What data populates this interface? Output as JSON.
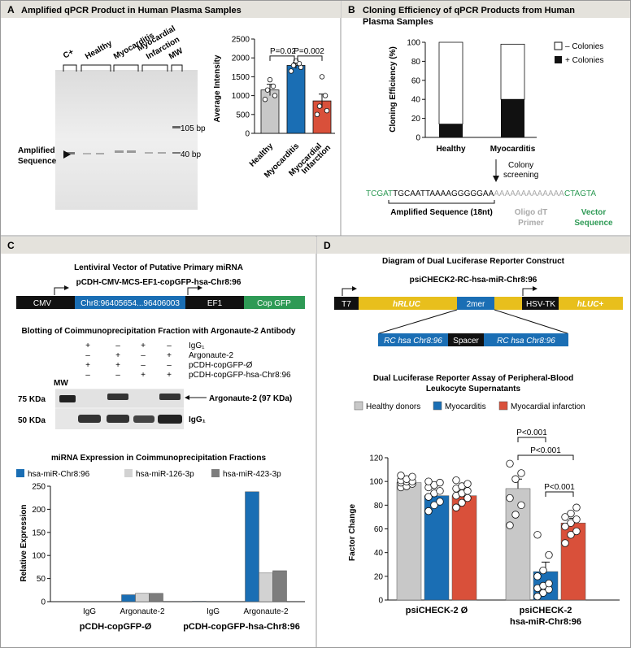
{
  "colors": {
    "panel_header": "#e4e2dc",
    "healthy": "#c8c8c8",
    "myocarditis": "#1a6eb4",
    "infarction": "#d9503a",
    "mir126": "#d2d2d2",
    "mir423": "#7d7d7d",
    "green_seq": "#2e9a55",
    "yellow": "#e8bf1c",
    "blue_seg": "#1a6eb4"
  },
  "panelA": {
    "letter": "A",
    "title": "Amplified qPCR Product in Human Plasma Samples",
    "gel": {
      "lane_labels": [
        "C+",
        "Healthy",
        "Myocarditis",
        "Myocardial Infarction",
        "MW"
      ],
      "markers": [
        "105 bp",
        "40 bp"
      ],
      "arrow_label_line1": "Amplified",
      "arrow_label_line2": "Sequence"
    },
    "chart_data": {
      "type": "bar",
      "ylabel": "Average Intensity",
      "ylim": [
        0,
        2500
      ],
      "yticks": [
        0,
        500,
        1000,
        1500,
        2000,
        2500
      ],
      "categories": [
        "Healthy",
        "Myocarditis",
        "Myocardial Infarction"
      ],
      "values": [
        1150,
        1800,
        860
      ],
      "errors": [
        150,
        80,
        180
      ],
      "points": [
        [
          900,
          1000,
          1150,
          1250,
          1420
        ],
        [
          1650,
          1750,
          1800,
          1850,
          1920
        ],
        [
          500,
          600,
          720,
          1000,
          1500
        ]
      ],
      "pvalues": [
        "P=0.02",
        "P=0.002"
      ]
    }
  },
  "panelB": {
    "letter": "B",
    "title_line1": "Cloning Efficiency of qPCR Products from Human",
    "title_line2": "Plasma Samples",
    "chart_data": {
      "type": "bar",
      "ylabel": "Cloning Efficiency (%)",
      "ylim": [
        0,
        100
      ],
      "yticks": [
        0,
        20,
        40,
        60,
        80,
        100
      ],
      "categories": [
        "Healthy",
        "Myocarditis"
      ],
      "series": [
        {
          "name": "+ Colonies",
          "values": [
            14,
            40
          ]
        },
        {
          "name": "– Colonies",
          "values": [
            86,
            58
          ]
        }
      ]
    },
    "screening_line1": "Colony",
    "screening_line2": "screening",
    "sequence": {
      "green_left": "TCGAT",
      "black": "TGCAATTAAAAGGGGGAA",
      "gray": "AAAAAAAAAAAAA",
      "green_right": "CTAGTA"
    },
    "amplified_label": "Amplified Sequence (18nt)",
    "oligo_line1": "Oligo dT",
    "oligo_line2": "Primer",
    "vector_line1": "Vector",
    "vector_line2": "Sequence"
  },
  "panelC": {
    "letter": "C",
    "vector_title": "Lentiviral Vector of Putative Primary miRNA",
    "construct_name": "pCDH-CMV-MCS-EF1-copGFP-hsa-Chr8:96",
    "segments": [
      "CMV",
      "Chr8:96405654...96406003",
      "EF1",
      "Cop GFP"
    ],
    "blot_title": "Blotting of Coimmunoprecipitation Fraction with Argonaute-2 Antibody",
    "blot_rows": [
      {
        "label": "IgG₁",
        "marks": [
          "+",
          "–",
          "+",
          "–"
        ]
      },
      {
        "label": "Argonaute-2",
        "marks": [
          "–",
          "+",
          "–",
          "+"
        ]
      },
      {
        "label": "pCDH-copGFP-Ø",
        "marks": [
          "+",
          "+",
          "–",
          "–"
        ]
      },
      {
        "label": "pCDH-copGFP-hsa-Chr8:96",
        "marks": [
          "–",
          "–",
          "+",
          "+"
        ]
      }
    ],
    "blot_mw": "MW",
    "blot_sizes": [
      "75 KDa",
      "50 KDa"
    ],
    "blot_band_ago": "Argonaute-2 (97 KDa)",
    "blot_band_igg": "IgG₁",
    "expr_title": "miRNA Expression in Coimmunoprecipitation Fractions",
    "chart_data": {
      "type": "bar",
      "ylabel": "Relative Expression",
      "ylim": [
        0,
        250
      ],
      "yticks": [
        0,
        50,
        100,
        150,
        200,
        250
      ],
      "categories": [
        "IgG",
        "Argonaute-2",
        "IgG",
        "Argonaute-2"
      ],
      "groups": [
        "pCDH-copGFP-Ø",
        "pCDH-copGFP-hsa-Chr8:96"
      ],
      "series": [
        {
          "name": "hsa-miR-Chr8:96",
          "values": [
            0,
            15,
            1,
            238
          ]
        },
        {
          "name": "hsa-miR-126-3p",
          "values": [
            0,
            18,
            0,
            62
          ]
        },
        {
          "name": "hsa-miR-423-3p",
          "values": [
            0,
            18,
            0,
            67
          ]
        }
      ]
    }
  },
  "panelD": {
    "letter": "D",
    "diagram_title": "Diagram of Dual Luciferase Reporter Construct",
    "construct_name": "psiCHECK2-RC-hsa-miR-Chr8:96",
    "segments": [
      "T7",
      "hRLUC",
      "2mer",
      "HSV-TK",
      "hLUC+"
    ],
    "insert": [
      "RC hsa Chr8:96",
      "Spacer",
      "RC hsa Chr8:96"
    ],
    "assay_title_line1": "Dual Luciferase Reporter Assay of Peripheral-Blood",
    "assay_title_line2": "Leukocyte Supernatants",
    "chart_data": {
      "type": "bar",
      "ylabel": "Factor Change",
      "ylim": [
        0,
        120
      ],
      "yticks": [
        0,
        20,
        40,
        60,
        80,
        100,
        120
      ],
      "categories": [
        "psiCHECK-2 Ø",
        "psiCHECK-2 hsa-miR-Chr8:96"
      ],
      "series": [
        {
          "name": "Healthy donors",
          "values": [
            99,
            94
          ],
          "errors": [
            2,
            8
          ]
        },
        {
          "name": "Myocarditis",
          "values": [
            88,
            24
          ],
          "errors": [
            4,
            8
          ]
        },
        {
          "name": "Myocardial infarction",
          "values": [
            88,
            65
          ],
          "errors": [
            3,
            4
          ]
        }
      ],
      "points": [
        [
          [
            95,
            96,
            98,
            99,
            100,
            100,
            101,
            102,
            104,
            105
          ],
          [
            63,
            72,
            80,
            86,
            102,
            107,
            115
          ]
        ],
        [
          [
            75,
            80,
            83,
            87,
            90,
            92,
            95,
            97,
            99,
            100
          ],
          [
            3,
            6,
            9,
            10,
            12,
            14,
            20,
            25,
            38,
            55
          ]
        ],
        [
          [
            78,
            82,
            86,
            88,
            90,
            92,
            94,
            96,
            98,
            101
          ],
          [
            48,
            55,
            58,
            62,
            65,
            68,
            70,
            73,
            78
          ]
        ]
      ],
      "pvalues": [
        "P<0.001",
        "P<0.001",
        "P<0.001"
      ]
    }
  }
}
